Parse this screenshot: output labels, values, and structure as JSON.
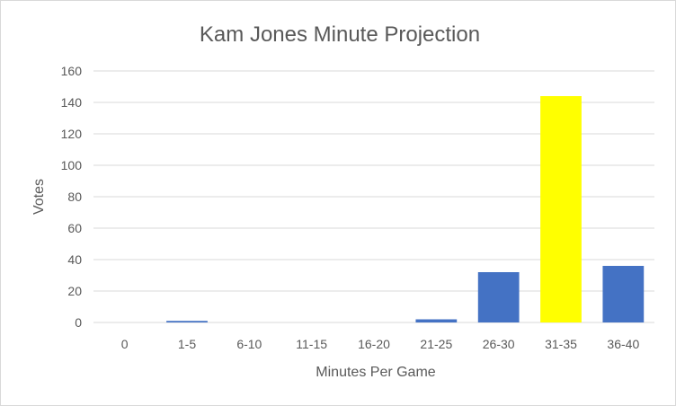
{
  "chart_data": {
    "type": "bar",
    "title": "Kam Jones Minute Projection",
    "xlabel": "Minutes Per Game",
    "ylabel": "Votes",
    "categories": [
      "0",
      "1-5",
      "6-10",
      "11-15",
      "16-20",
      "21-25",
      "26-30",
      "31-35",
      "36-40"
    ],
    "values": [
      0,
      1,
      0,
      0,
      0,
      2,
      32,
      144,
      36
    ],
    "ylim": [
      0,
      160
    ],
    "yticks": [
      0,
      20,
      40,
      60,
      80,
      100,
      120,
      140,
      160
    ],
    "grid": true,
    "legend": "none",
    "bar_color": "#4472C4",
    "highlight_color": "#FFFF00",
    "highlight_category": "31-35"
  }
}
